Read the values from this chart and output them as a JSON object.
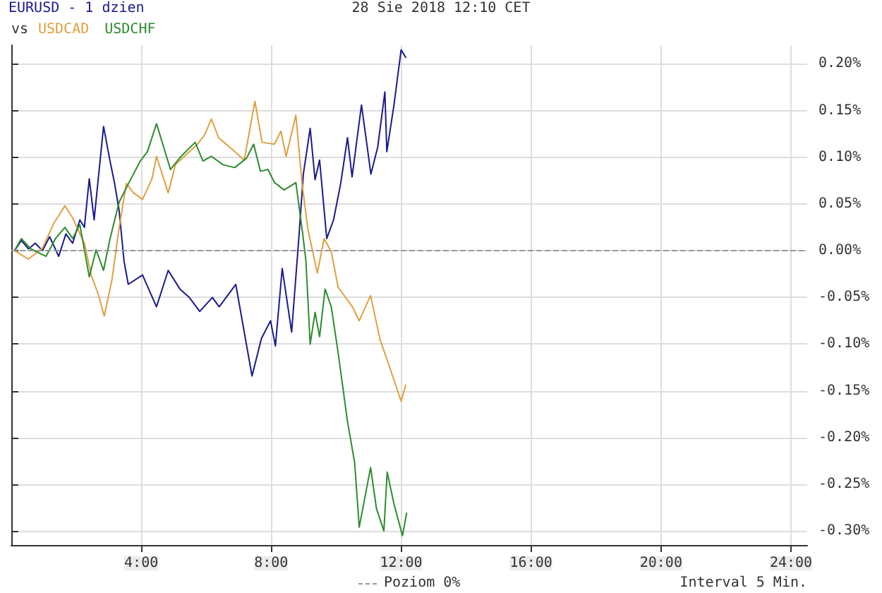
{
  "chart_data": {
    "type": "line",
    "title": "EURUSD - 1 dzien",
    "subtitle": "28 Sie 2018 12:10 CET",
    "legend_title": "vs",
    "legend": "top left",
    "annotations": [
      "Poziom 0%",
      "Interval 5 Min."
    ],
    "ref_lines": [
      {
        "axis": "y",
        "value": 0,
        "line_style": "dashed",
        "color": "#999999"
      }
    ],
    "xlim": [
      0,
      24.5
    ],
    "xticks": [
      {
        "value": 4,
        "label": "4:00"
      },
      {
        "value": 8,
        "label": "8:00"
      },
      {
        "value": 12,
        "label": "12:00"
      },
      {
        "value": 16,
        "label": "16:00"
      },
      {
        "value": 20,
        "label": "20:00"
      },
      {
        "value": 24,
        "label": "24:00"
      }
    ],
    "ylim": [
      -0.315,
      0.22
    ],
    "yticks": [
      {
        "value": -0.3,
        "label": "-0.30%"
      },
      {
        "value": -0.25,
        "label": "-0.25%"
      },
      {
        "value": -0.2,
        "label": "-0.20%"
      },
      {
        "value": -0.15,
        "label": "-0.15%"
      },
      {
        "value": -0.1,
        "label": "-0.10%"
      },
      {
        "value": -0.05,
        "label": "-0.05%"
      },
      {
        "value": 0,
        "label": "0.00%"
      },
      {
        "value": 0.05,
        "label": "0.05%"
      },
      {
        "value": 0.1,
        "label": "0.10%"
      },
      {
        "value": 0.15,
        "label": "0.15%"
      },
      {
        "value": 0.2,
        "label": "0.20%"
      }
    ],
    "grid": true,
    "marker": "none",
    "line_style": "solid",
    "series": [
      {
        "color": "#1a1a8c",
        "x": [
          0.1,
          0.31,
          0.53,
          0.74,
          0.96,
          1.18,
          1.46,
          1.68,
          1.89,
          2.11,
          2.25,
          2.4,
          2.55,
          2.84,
          3.04,
          3.18,
          3.32,
          3.47,
          3.6,
          4.04,
          4.47,
          4.83,
          5.19,
          5.48,
          5.8,
          6.19,
          6.4,
          6.91,
          7.41,
          7.7,
          7.98,
          8.13,
          8.34,
          8.63,
          8.85,
          8.99,
          9.2,
          9.35,
          9.49,
          9.71,
          9.92,
          10.14,
          10.35,
          10.49,
          10.78,
          11.07,
          11.28,
          11.5,
          11.56,
          11.78,
          12.0,
          12.14
        ],
        "values": [
          0,
          0.011,
          0.002,
          0.008,
          0,
          0.015,
          -0.006,
          0.018,
          0.008,
          0.033,
          0.025,
          0.077,
          0.033,
          0.133,
          0.096,
          0.072,
          0.043,
          -0.011,
          -0.036,
          -0.026,
          -0.06,
          -0.021,
          -0.041,
          -0.05,
          -0.065,
          -0.05,
          -0.06,
          -0.036,
          -0.134,
          -0.094,
          -0.075,
          -0.102,
          -0.019,
          -0.087,
          0.013,
          0.082,
          0.131,
          0.076,
          0.097,
          0.013,
          0.033,
          0.072,
          0.121,
          0.079,
          0.156,
          0.082,
          0.111,
          0.17,
          0.106,
          0.156,
          0.215,
          0.207
        ]
      },
      {
        "name": "USDCAD",
        "color": "#e0a040",
        "x": [
          0.1,
          0.53,
          0.96,
          1.32,
          1.65,
          1.89,
          2.25,
          2.46,
          2.67,
          2.86,
          3.1,
          3.3,
          3.54,
          3.76,
          4.04,
          4.33,
          4.47,
          4.83,
          5.05,
          5.73,
          5.95,
          6.16,
          6.38,
          6.88,
          7.17,
          7.5,
          7.72,
          8.1,
          8.3,
          8.46,
          8.76,
          8.95,
          9.13,
          9.42,
          9.63,
          9.85,
          10.06,
          10.5,
          10.71,
          11.06,
          11.35,
          11.64,
          12.0,
          12.14
        ],
        "values": [
          0,
          -0.009,
          0.003,
          0.03,
          0.048,
          0.035,
          0.008,
          -0.026,
          -0.046,
          -0.07,
          -0.031,
          0.02,
          0.072,
          0.062,
          0.055,
          0.077,
          0.101,
          0.062,
          0.092,
          0.114,
          0.124,
          0.141,
          0.121,
          0.106,
          0.097,
          0.16,
          0.116,
          0.114,
          0.128,
          0.101,
          0.145,
          0.072,
          0.023,
          -0.024,
          0.013,
          -0.001,
          -0.039,
          -0.06,
          -0.075,
          -0.048,
          -0.095,
          -0.124,
          -0.161,
          -0.144
        ]
      },
      {
        "name": "USDCHF",
        "color": "#2e8b2e",
        "x": [
          0.1,
          0.31,
          0.6,
          1.07,
          1.36,
          1.65,
          1.89,
          2.11,
          2.4,
          2.61,
          2.84,
          3.04,
          3.32,
          3.61,
          3.97,
          4.19,
          4.47,
          4.69,
          4.9,
          5.2,
          5.66,
          5.9,
          6.16,
          6.52,
          6.88,
          7.24,
          7.46,
          7.67,
          7.9,
          8.1,
          8.4,
          8.76,
          8.97,
          9.07,
          9.2,
          9.35,
          9.49,
          9.66,
          9.85,
          10.06,
          10.35,
          10.57,
          10.71,
          11.06,
          11.24,
          11.47,
          11.57,
          11.78,
          12.04,
          12.17
        ],
        "values": [
          0,
          0.013,
          0.002,
          -0.006,
          0.013,
          0.025,
          0.013,
          0.028,
          -0.028,
          0.001,
          -0.021,
          0.013,
          0.052,
          0.072,
          0.096,
          0.106,
          0.136,
          0.111,
          0.087,
          0.1,
          0.116,
          0.096,
          0.101,
          0.092,
          0.089,
          0.099,
          0.114,
          0.085,
          0.087,
          0.073,
          0.065,
          0.073,
          0.018,
          -0.011,
          -0.1,
          -0.066,
          -0.092,
          -0.041,
          -0.06,
          -0.109,
          -0.183,
          -0.227,
          -0.296,
          -0.232,
          -0.276,
          -0.3,
          -0.237,
          -0.271,
          -0.305,
          -0.281
        ]
      }
    ]
  }
}
